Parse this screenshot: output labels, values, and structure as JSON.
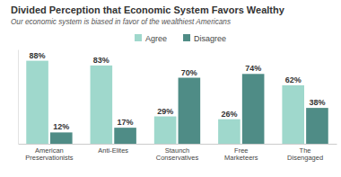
{
  "chart_data": {
    "type": "bar",
    "title": "Divided Perception that Economic System Favors Wealthy",
    "subtitle": "Our economic system is biased in favor of the wealthiest Americans",
    "categories": [
      "American Preservationists",
      "Anti-Elites",
      "Staunch Conservatives",
      "Free Marketeers",
      "The Disengaged"
    ],
    "series": [
      {
        "name": "Agree",
        "color": "#9fd8cc",
        "values": [
          88,
          83,
          29,
          26,
          62
        ],
        "value_labels": [
          "88%",
          "83%",
          "29%",
          "26%",
          "62%"
        ]
      },
      {
        "name": "Disagree",
        "color": "#4f8c86",
        "values": [
          12,
          17,
          70,
          74,
          38
        ],
        "value_labels": [
          "12%",
          "17%",
          "70%",
          "74%",
          "38%"
        ]
      }
    ],
    "ylim": [
      0,
      100
    ],
    "legend": "top",
    "data_labels": true,
    "tick_labels": "x",
    "grid": false
  }
}
